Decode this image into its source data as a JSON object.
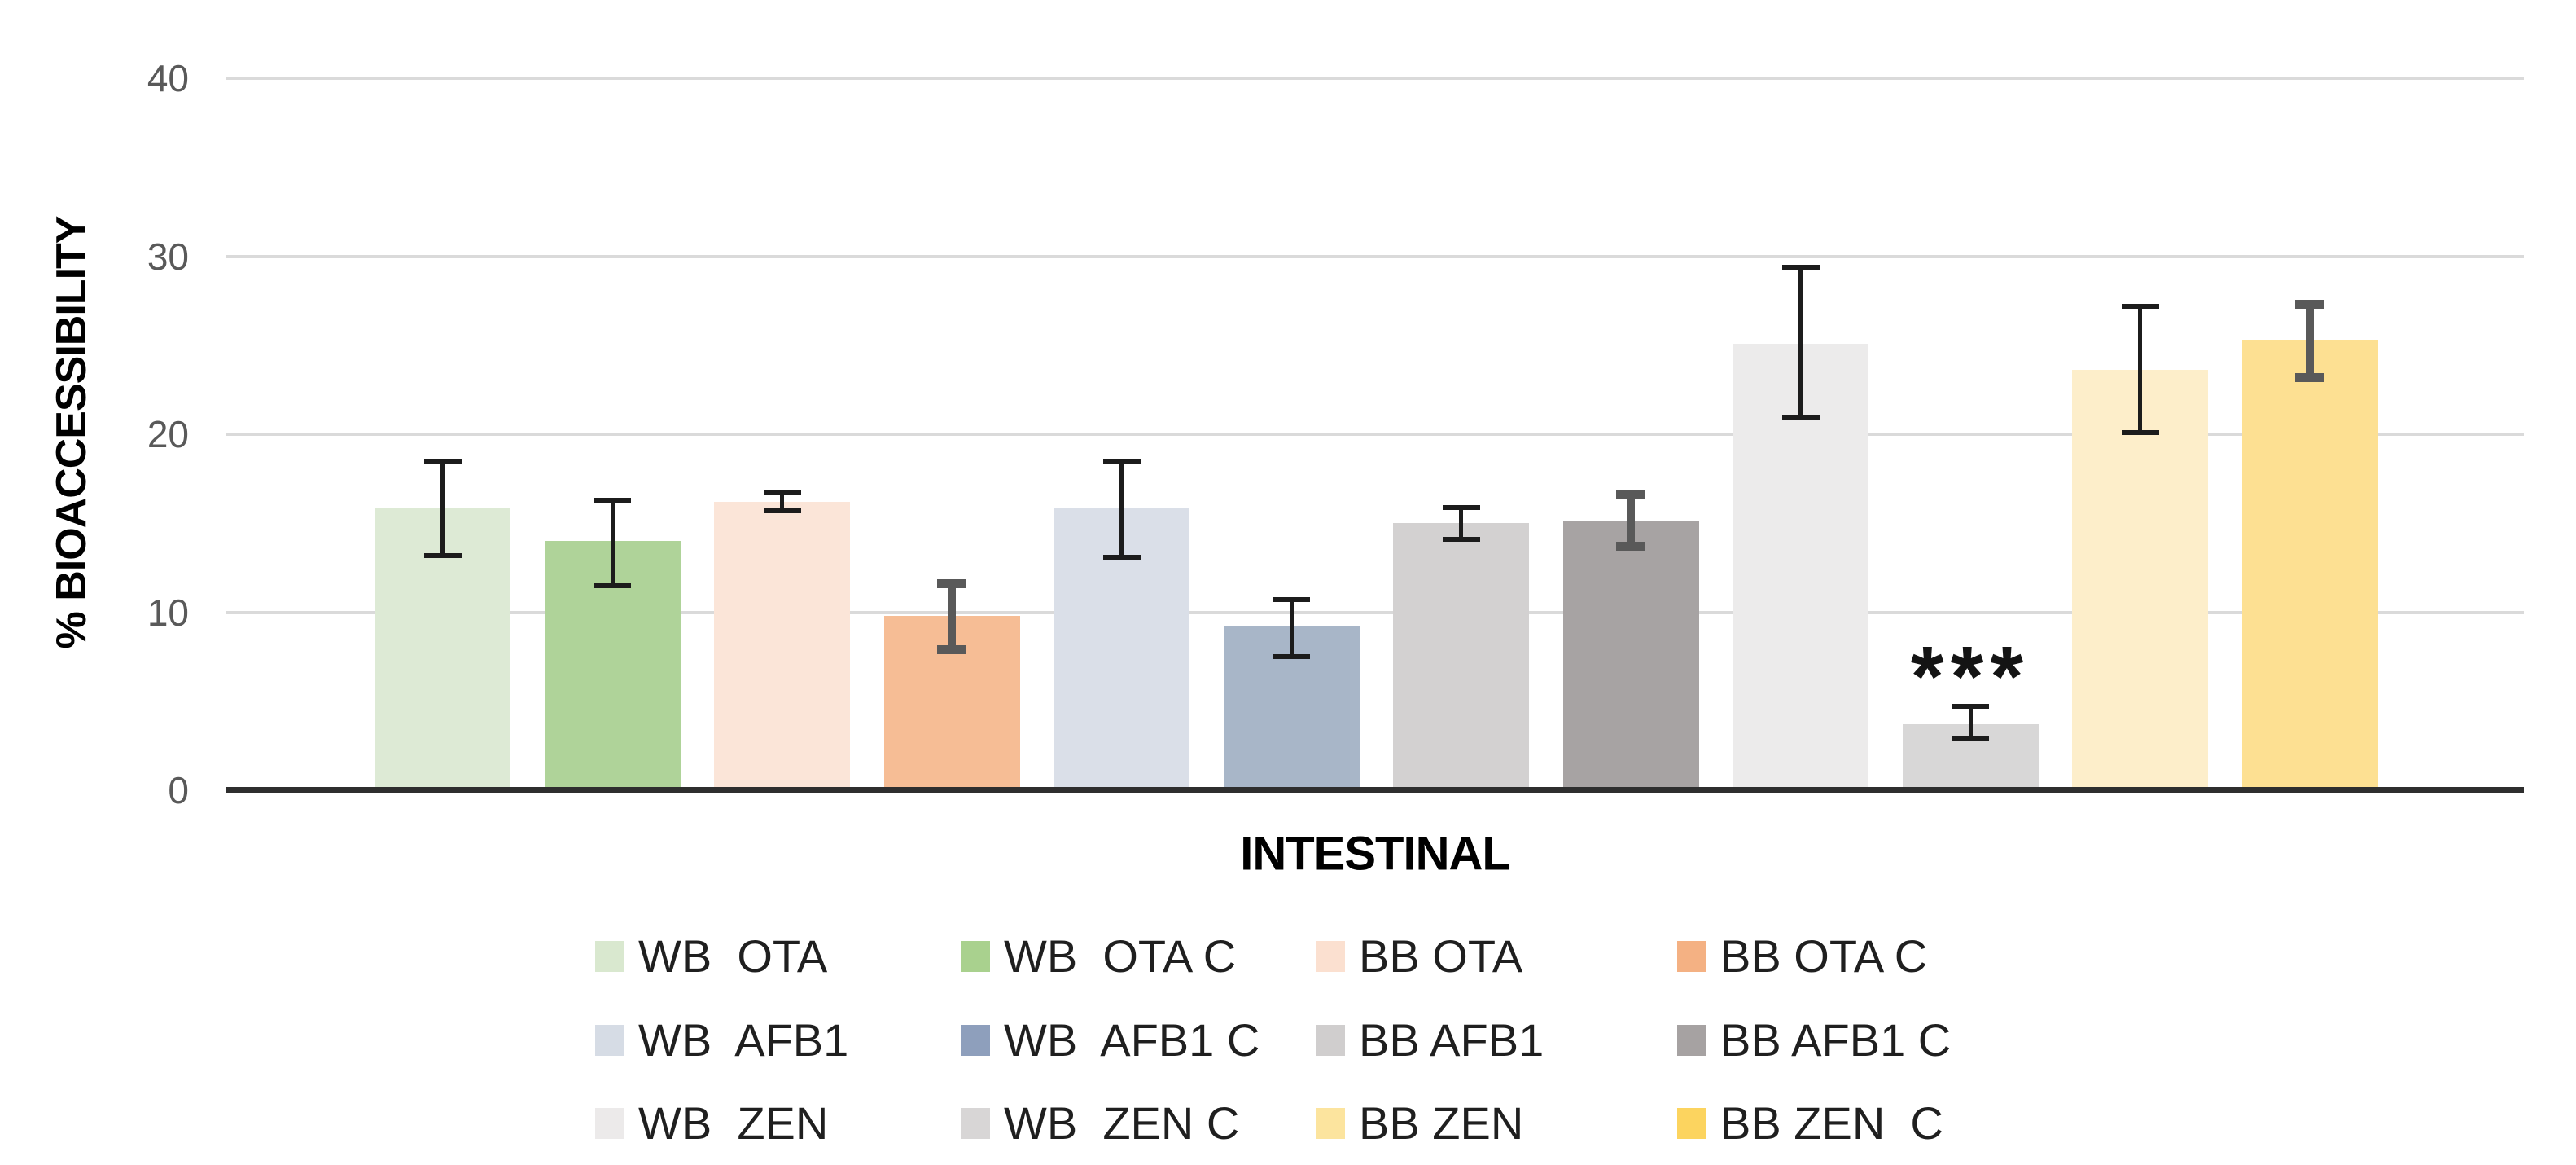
{
  "chart_data": {
    "type": "bar",
    "title": "",
    "xlabel": "INTESTINAL",
    "ylabel": "% BIOACCESSIBILITY",
    "ylim": [
      0,
      40
    ],
    "y_ticks": [
      0,
      10,
      20,
      30,
      40
    ],
    "grid": "horizontal",
    "legend_position": "bottom",
    "legend_columns": 4,
    "annotation": {
      "text": "***",
      "bar_index": 9,
      "target": "WB  ZEN C"
    },
    "bars": [
      {
        "label": "WB  OTA",
        "value": 15.9,
        "err_up": 2.6,
        "err_down": 2.7,
        "bar_color": "#DDEAD5",
        "legend_color": "#D9E8CF",
        "error_bar_style": "thin"
      },
      {
        "label": "WB  OTA C",
        "value": 14.0,
        "err_up": 2.3,
        "err_down": 2.5,
        "bar_color": "#AFD399",
        "legend_color": "#A9D18E",
        "error_bar_style": "thin"
      },
      {
        "label": "BB OTA",
        "value": 16.2,
        "err_up": 0.5,
        "err_down": 0.5,
        "bar_color": "#FBE5D8",
        "legend_color": "#FBE0D0",
        "error_bar_style": "thin"
      },
      {
        "label": "BB OTA C",
        "value": 9.8,
        "err_up": 1.8,
        "err_down": 1.9,
        "bar_color": "#F6BD95",
        "legend_color": "#F4B183",
        "error_bar_style": "thick"
      },
      {
        "label": "WB  AFB1",
        "value": 15.9,
        "err_up": 2.6,
        "err_down": 2.8,
        "bar_color": "#DADFE8",
        "legend_color": "#D6DCE5",
        "error_bar_style": "thin"
      },
      {
        "label": "WB  AFB1 C",
        "value": 9.2,
        "err_up": 1.5,
        "err_down": 1.7,
        "bar_color": "#A8B6C8",
        "legend_color": "#8E9FBC",
        "error_bar_style": "thin"
      },
      {
        "label": "BB AFB1",
        "value": 15.0,
        "err_up": 0.9,
        "err_down": 0.9,
        "bar_color": "#D3D1D1",
        "legend_color": "#D0CECE",
        "error_bar_style": "thin"
      },
      {
        "label": "BB AFB1 C",
        "value": 15.1,
        "err_up": 1.5,
        "err_down": 1.4,
        "bar_color": "#A7A3A3",
        "legend_color": "#A6A2A2",
        "error_bar_style": "thick"
      },
      {
        "label": "WB  ZEN",
        "value": 25.1,
        "err_up": 4.3,
        "err_down": 4.2,
        "bar_color": "#ECEBEB",
        "legend_color": "#ECEAEA",
        "error_bar_style": "thin"
      },
      {
        "label": "WB  ZEN C",
        "value": 3.7,
        "err_up": 1.0,
        "err_down": 0.8,
        "bar_color": "#D8D7D7",
        "legend_color": "#D8D6D6",
        "error_bar_style": "thin"
      },
      {
        "label": "BB ZEN",
        "value": 23.6,
        "err_up": 3.6,
        "err_down": 3.5,
        "bar_color": "#FDEECA",
        "legend_color": "#FCE49E",
        "error_bar_style": "thin"
      },
      {
        "label": "BB ZEN  C",
        "value": 25.3,
        "err_up": 2.0,
        "err_down": 2.1,
        "bar_color": "#FDE092",
        "legend_color": "#FCD45F",
        "error_bar_style": "thick"
      }
    ],
    "colors": {
      "background": "#FFFFFF",
      "gridline": "#DADADA",
      "axis_line": "#2E2E2E",
      "tick_label": "#595959",
      "axis_title": "#000000",
      "legend_text": "#1F1F1F",
      "error_bar_thin": "#1C1C1C",
      "error_bar_thick": "#595959"
    }
  }
}
